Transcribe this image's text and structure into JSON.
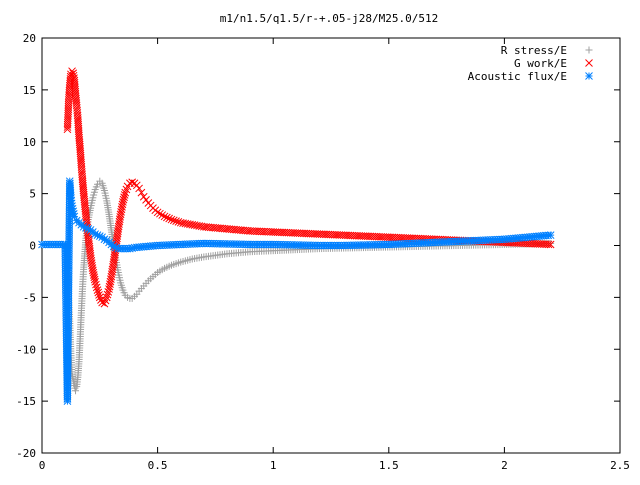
{
  "chart_data": {
    "type": "scatter",
    "title": "m1/n1.5/q1.5/r-+.05-j28/M25.0/512",
    "xlabel": "",
    "ylabel": "",
    "xlim": [
      0,
      2.5
    ],
    "ylim": [
      -20,
      20
    ],
    "x_ticks": [
      0,
      0.5,
      1,
      1.5,
      2,
      2.5
    ],
    "x_tick_labels": [
      "0",
      "0.5",
      "1",
      "1.5",
      "2",
      "2.5"
    ],
    "y_ticks": [
      -20,
      -15,
      -10,
      -5,
      0,
      5,
      10,
      15,
      20
    ],
    "y_tick_labels": [
      "-20",
      "-15",
      "-10",
      "-5",
      "0",
      "5",
      "10",
      "15",
      "20"
    ],
    "grid": false,
    "legend_position": "top-right",
    "series": [
      {
        "name": "R stress/E",
        "marker": "plus",
        "color": "#a0a0a0",
        "x": [
          0.11,
          0.12,
          0.125,
          0.13,
          0.14,
          0.145,
          0.15,
          0.155,
          0.16,
          0.165,
          0.17,
          0.175,
          0.18,
          0.185,
          0.19,
          0.2,
          0.21,
          0.22,
          0.23,
          0.24,
          0.25,
          0.26,
          0.27,
          0.28,
          0.29,
          0.3,
          0.31,
          0.32,
          0.33,
          0.34,
          0.35,
          0.36,
          0.37,
          0.38,
          0.39,
          0.4,
          0.41,
          0.42,
          0.44,
          0.46,
          0.48,
          0.5,
          0.53,
          0.56,
          0.6,
          0.65,
          0.7,
          0.8,
          0.9,
          1.0,
          1.2,
          1.4,
          1.6,
          1.8,
          2.0,
          2.2
        ],
        "y": [
          -2.7,
          -7.3,
          -10.4,
          -12.4,
          -13.5,
          -14.0,
          -13.6,
          -12.7,
          -11.2,
          -9.0,
          -6.5,
          -4.2,
          -2.3,
          -0.8,
          0.7,
          2.5,
          3.6,
          4.6,
          5.4,
          5.9,
          6.2,
          6.0,
          5.3,
          4.3,
          3.0,
          1.5,
          0.0,
          -1.4,
          -2.6,
          -3.6,
          -4.3,
          -4.8,
          -5.0,
          -5.1,
          -5.1,
          -4.9,
          -4.7,
          -4.4,
          -3.9,
          -3.4,
          -3.0,
          -2.6,
          -2.2,
          -1.9,
          -1.6,
          -1.3,
          -1.1,
          -0.8,
          -0.6,
          -0.5,
          -0.3,
          -0.2,
          -0.1,
          0.0,
          0.1,
          0.2
        ]
      },
      {
        "name": "G work/E",
        "marker": "cross",
        "color": "#ff0000",
        "x": [
          0.11,
          0.115,
          0.12,
          0.125,
          0.13,
          0.135,
          0.14,
          0.145,
          0.15,
          0.155,
          0.16,
          0.165,
          0.17,
          0.175,
          0.18,
          0.19,
          0.2,
          0.21,
          0.22,
          0.23,
          0.24,
          0.25,
          0.26,
          0.27,
          0.28,
          0.29,
          0.3,
          0.31,
          0.32,
          0.33,
          0.34,
          0.35,
          0.36,
          0.37,
          0.38,
          0.39,
          0.4,
          0.41,
          0.42,
          0.43,
          0.44,
          0.46,
          0.48,
          0.5,
          0.53,
          0.56,
          0.6,
          0.65,
          0.7,
          0.8,
          0.9,
          1.0,
          1.2,
          1.4,
          1.6,
          1.8,
          2.0,
          2.2
        ],
        "y": [
          11.2,
          13.8,
          15.4,
          16.5,
          16.8,
          16.6,
          15.9,
          14.6,
          13.5,
          12.3,
          10.6,
          9.3,
          7.8,
          6.4,
          5.1,
          2.9,
          0.8,
          -1.0,
          -2.4,
          -3.5,
          -4.3,
          -5.0,
          -5.5,
          -5.6,
          -5.0,
          -4.2,
          -3.0,
          -1.6,
          0.0,
          1.6,
          3.0,
          4.2,
          5.1,
          5.7,
          6.0,
          6.1,
          6.0,
          5.8,
          5.5,
          5.1,
          4.7,
          4.1,
          3.6,
          3.2,
          2.8,
          2.5,
          2.2,
          2.0,
          1.8,
          1.6,
          1.4,
          1.3,
          1.1,
          0.9,
          0.7,
          0.5,
          0.3,
          0.1
        ]
      },
      {
        "name": "Acoustic flux/E",
        "marker": "star",
        "color": "#0080ff",
        "x": [
          0.0,
          0.02,
          0.04,
          0.06,
          0.08,
          0.1,
          0.11,
          0.115,
          0.12,
          0.125,
          0.13,
          0.135,
          0.14,
          0.15,
          0.16,
          0.17,
          0.18,
          0.19,
          0.2,
          0.21,
          0.22,
          0.23,
          0.24,
          0.25,
          0.26,
          0.27,
          0.28,
          0.29,
          0.3,
          0.31,
          0.32,
          0.33,
          0.34,
          0.36,
          0.38,
          0.4,
          0.45,
          0.5,
          0.6,
          0.7,
          0.8,
          0.9,
          1.0,
          1.1,
          1.2,
          1.3,
          1.4,
          1.5,
          1.6,
          1.7,
          1.8,
          1.9,
          2.0,
          2.05,
          2.1,
          2.15,
          2.2
        ],
        "y": [
          0.1,
          0.1,
          0.1,
          0.1,
          0.1,
          0.1,
          -15.0,
          -4.1,
          6.2,
          4.6,
          3.8,
          3.3,
          2.8,
          2.4,
          2.2,
          2.0,
          1.8,
          1.7,
          1.6,
          1.5,
          1.3,
          1.1,
          1.0,
          0.9,
          0.8,
          0.6,
          0.5,
          0.3,
          0.1,
          -0.1,
          -0.2,
          -0.3,
          -0.3,
          -0.3,
          -0.3,
          -0.2,
          -0.1,
          0.0,
          0.1,
          0.2,
          0.15,
          0.1,
          0.1,
          0.05,
          0.0,
          0.0,
          0.05,
          0.1,
          0.2,
          0.3,
          0.4,
          0.5,
          0.6,
          0.7,
          0.8,
          0.9,
          1.0
        ]
      }
    ]
  }
}
